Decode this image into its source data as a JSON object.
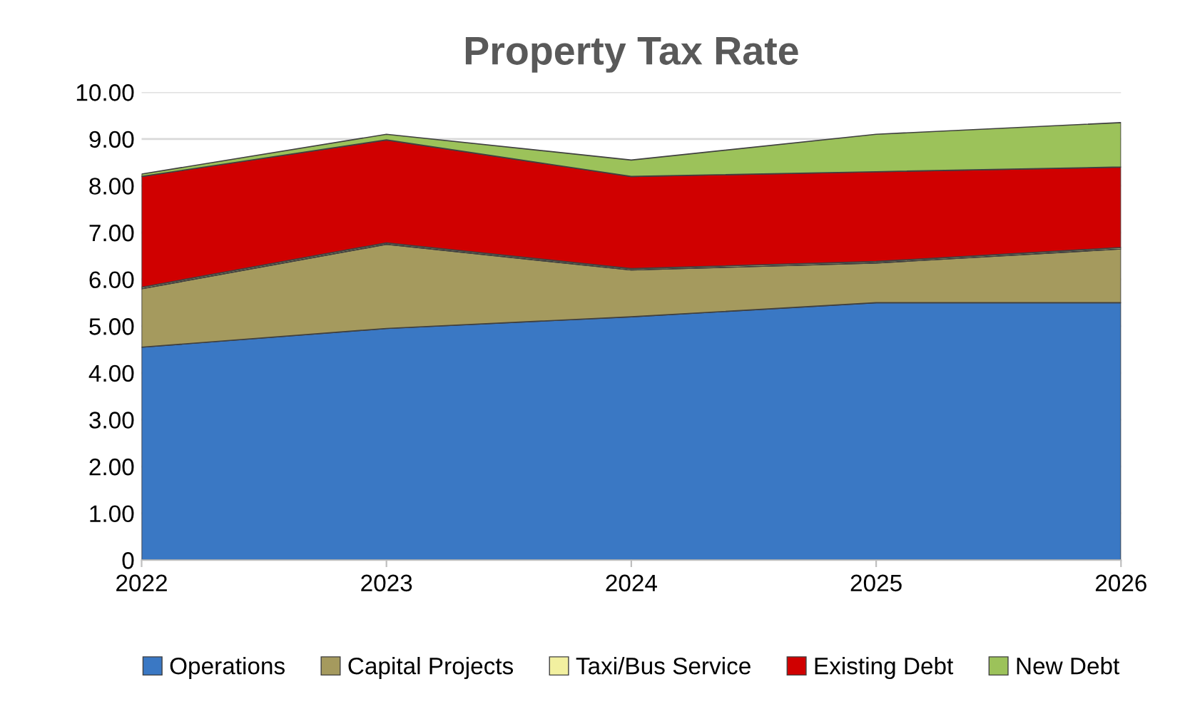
{
  "chart_data": {
    "type": "area",
    "title": "Property Tax Rate",
    "stacked": true,
    "categories": [
      "2022",
      "2023",
      "2024",
      "2025",
      "2026"
    ],
    "series": [
      {
        "name": "Operations",
        "color": "#3a78c4",
        "values": [
          4.55,
          4.95,
          5.2,
          5.5,
          5.5
        ]
      },
      {
        "name": "Capital Projects",
        "color": "#a59a5e",
        "values": [
          1.25,
          1.8,
          1.0,
          0.85,
          1.15
        ]
      },
      {
        "name": "Taxi/Bus Service",
        "color": "#f2f0a0",
        "values": [
          0.03,
          0.03,
          0.03,
          0.03,
          0.03
        ]
      },
      {
        "name": "Existing Debt",
        "color": "#d00000",
        "values": [
          2.37,
          2.2,
          1.97,
          1.92,
          1.72
        ]
      },
      {
        "name": "New Debt",
        "color": "#9cc25a",
        "values": [
          0.05,
          0.12,
          0.35,
          0.8,
          0.95
        ]
      }
    ],
    "ylim": [
      0,
      10
    ],
    "yticks": [
      {
        "value": 0,
        "label": "0"
      },
      {
        "value": 1,
        "label": "1.00"
      },
      {
        "value": 2,
        "label": "2.00"
      },
      {
        "value": 3,
        "label": "3.00"
      },
      {
        "value": 4,
        "label": "4.00"
      },
      {
        "value": 5,
        "label": "5.00"
      },
      {
        "value": 6,
        "label": "6.00"
      },
      {
        "value": 7,
        "label": "7.00"
      },
      {
        "value": 8,
        "label": "8.00"
      },
      {
        "value": 9,
        "label": "9.00"
      },
      {
        "value": 10,
        "label": "10.00"
      }
    ],
    "grid": "y",
    "legend": "bottom"
  }
}
